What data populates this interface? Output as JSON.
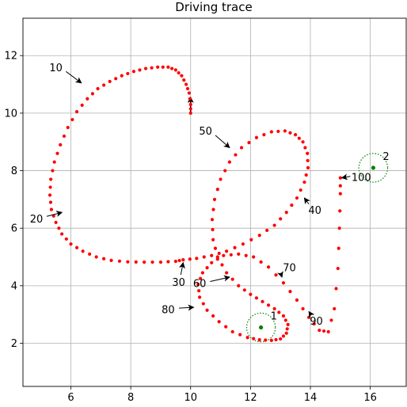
{
  "chart_data": {
    "type": "scatter",
    "title": "Driving trace",
    "xlabel": "",
    "ylabel": "",
    "xlim": [
      4.4,
      17.2
    ],
    "ylim": [
      0.5,
      13.3
    ],
    "xticks": [
      6,
      8,
      10,
      12,
      14,
      16
    ],
    "yticks": [
      2,
      4,
      6,
      8,
      10,
      12
    ],
    "grid": true,
    "colors": {
      "trace": "#ff0000",
      "landmark": "#008000",
      "arrow": "#000000"
    },
    "trace": {
      "start": [
        10.0,
        10.0
      ],
      "heading_arrow": {
        "from": [
          10.0,
          10.05
        ],
        "to": [
          10.0,
          10.55
        ]
      },
      "x": [
        10.0,
        10.0,
        9.95,
        9.85,
        9.7,
        9.5,
        9.25,
        8.9,
        8.5,
        8.1,
        7.7,
        7.3,
        6.9,
        6.55,
        6.2,
        5.9,
        5.65,
        5.45,
        5.33,
        5.3,
        5.35,
        5.5,
        5.7,
        6.0,
        6.4,
        6.85,
        7.35,
        7.9,
        8.45,
        9.0,
        9.5,
        9.75,
        10.2,
        10.7,
        11.2,
        11.75,
        12.3,
        12.8,
        13.2,
        13.55,
        13.8,
        13.92,
        13.9,
        13.75,
        13.5,
        13.15,
        12.7,
        12.2,
        11.7,
        11.3,
        11.0,
        10.8,
        10.72,
        10.75,
        10.9,
        11.2,
        11.6,
        12.0,
        12.4,
        12.8,
        13.1,
        13.25,
        13.2,
        13.0,
        12.7,
        12.3,
        11.9,
        11.4,
        10.95,
        10.55,
        10.3,
        10.25,
        10.4,
        10.7,
        11.1,
        11.6,
        12.1,
        12.6,
        13.1,
        13.55,
        13.95,
        14.3,
        14.6,
        14.8,
        14.92,
        14.97,
        15.0,
        15.0
      ],
      "y": [
        10.0,
        10.3,
        10.7,
        11.0,
        11.3,
        11.5,
        11.6,
        11.6,
        11.55,
        11.45,
        11.3,
        11.1,
        10.85,
        10.5,
        10.05,
        9.5,
        8.9,
        8.3,
        7.7,
        7.15,
        6.65,
        6.2,
        5.8,
        5.45,
        5.2,
        5.0,
        4.88,
        4.83,
        4.82,
        4.82,
        4.85,
        4.9,
        4.95,
        5.05,
        5.2,
        5.45,
        5.75,
        6.1,
        6.55,
        7.05,
        7.6,
        8.1,
        8.6,
        9.0,
        9.25,
        9.38,
        9.35,
        9.15,
        8.8,
        8.3,
        7.7,
        7.0,
        6.3,
        5.6,
        5.0,
        4.45,
        4.0,
        3.7,
        3.45,
        3.2,
        2.95,
        2.65,
        2.35,
        2.15,
        2.1,
        2.12,
        2.2,
        2.4,
        2.75,
        3.15,
        3.6,
        4.05,
        4.45,
        4.8,
        5.05,
        5.1,
        5.0,
        4.65,
        4.1,
        3.5,
        2.9,
        2.45,
        2.4,
        3.2,
        4.6,
        6.0,
        7.2,
        7.75
      ]
    },
    "landmarks": [
      {
        "label": "1",
        "x": 12.35,
        "y": 2.55,
        "radius": 0.48
      },
      {
        "label": "2",
        "x": 16.1,
        "y": 8.1,
        "radius": 0.48
      }
    ],
    "annotations": [
      {
        "text": "10",
        "x": 6.35,
        "y": 11.05,
        "text_x": 5.5,
        "text_y": 11.45
      },
      {
        "text": "20",
        "x": 5.7,
        "y": 6.55,
        "text_x": 4.85,
        "text_y": 6.2
      },
      {
        "text": "30",
        "x": 9.75,
        "y": 4.8,
        "text_x": 9.6,
        "text_y": 4.0
      },
      {
        "text": "40",
        "x": 13.8,
        "y": 7.05,
        "text_x": 14.15,
        "text_y": 6.5
      },
      {
        "text": "50",
        "x": 11.3,
        "y": 8.8,
        "text_x": 10.5,
        "text_y": 9.25
      },
      {
        "text": "60",
        "x": 11.3,
        "y": 4.3,
        "text_x": 10.3,
        "text_y": 3.95
      },
      {
        "text": "70",
        "x": 13.05,
        "y": 4.3,
        "text_x": 13.3,
        "text_y": 4.5
      },
      {
        "text": "80",
        "x": 10.1,
        "y": 3.25,
        "text_x": 9.25,
        "text_y": 3.05
      },
      {
        "text": "90",
        "x": 13.95,
        "y": 3.1,
        "text_x": 14.2,
        "text_y": 2.65
      },
      {
        "text": "100",
        "x": 15.05,
        "y": 7.75,
        "text_x": 15.7,
        "text_y": 7.65
      }
    ]
  }
}
